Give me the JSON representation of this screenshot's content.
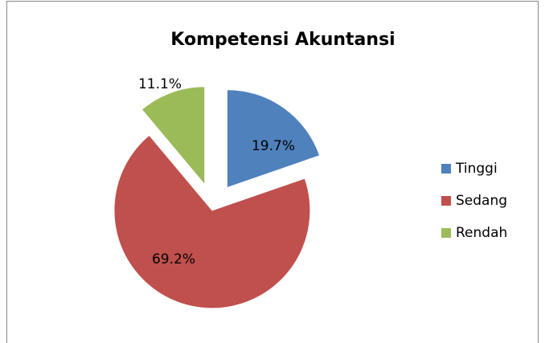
{
  "chart_data": {
    "type": "pie",
    "title": "Kompetensi Akuntansi",
    "categories": [
      "Tinggi",
      "Sedang",
      "Rendah"
    ],
    "values": [
      19.7,
      69.2,
      11.1
    ],
    "value_labels": [
      "19.7%",
      "69.2%",
      "11.1%"
    ],
    "colors": [
      "#4f81bd",
      "#c0504d",
      "#9bbb59"
    ],
    "legend": "right"
  }
}
